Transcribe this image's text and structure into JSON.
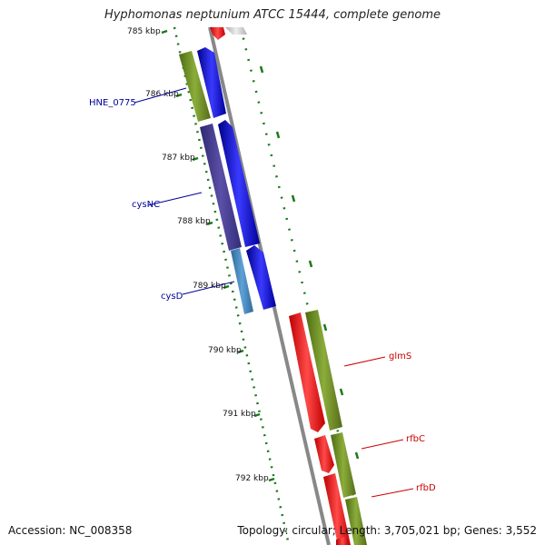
{
  "title": "Hyphomonas neptunium ATCC 15444, complete genome",
  "accession": "Accession: NC_008358",
  "summary": "Topology: circular; Length: 3,705,021 bp; Genes: 3,552",
  "ticks": [
    "785 kbp",
    "786 kbp",
    "787 kbp",
    "788 kbp",
    "789 kbp",
    "790 kbp",
    "791 kbp",
    "792 kbp"
  ],
  "genes": {
    "left": [
      "HNE_0775",
      "cysNC",
      "cysD"
    ],
    "right": [
      "glmS",
      "rfbC",
      "rfbD"
    ]
  },
  "colors": {
    "backbone": "#888888",
    "tick": "#1a7a1a",
    "forward_cds": "#0000ee",
    "reverse_cds": "#ee1111",
    "forward_gene": "#6b8e23",
    "cysNC_gene": "#483d8b",
    "cysD_gene": "#4682b4",
    "left_label": "#000099",
    "right_label": "#cc0000"
  }
}
